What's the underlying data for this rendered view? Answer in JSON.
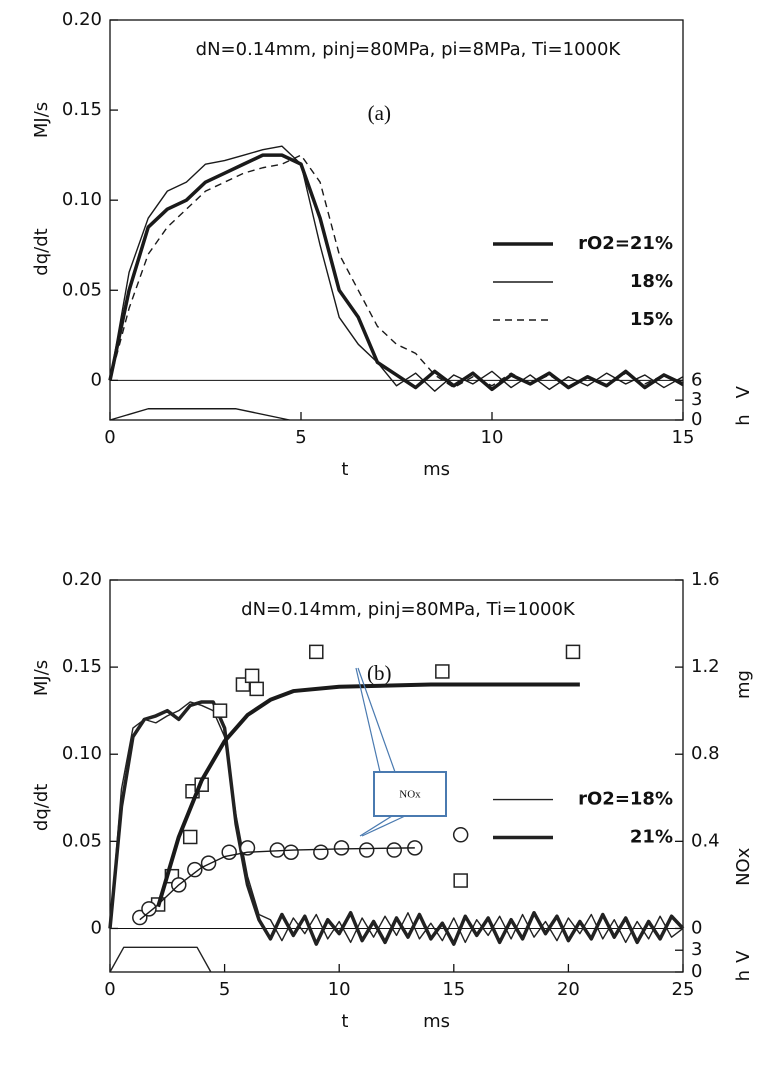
{
  "chart_data": [
    {
      "type": "line",
      "annotation": "dN=0.14mm, pinj=80MPa, pi=8MPa, Ti=1000K",
      "panel_label": "(a)",
      "ylabel": "dq/dt",
      "yunit": "MJ/s",
      "xlabel": "t",
      "xunit": "ms",
      "y2label": "h",
      "y2unit": "V",
      "x": [
        0,
        0.5,
        1,
        1.5,
        2,
        2.5,
        3,
        3.5,
        4,
        4.5,
        5,
        5.5,
        6,
        6.5,
        7,
        7.5,
        8,
        8.5,
        9,
        9.5,
        10,
        10.5,
        11,
        11.5,
        12,
        12.5,
        13,
        13.5,
        14,
        14.5,
        15
      ],
      "xlim": [
        0,
        15
      ],
      "xticks": [
        0,
        5,
        10,
        15
      ],
      "ylim": [
        -0.022,
        0.2
      ],
      "yticks": [
        0,
        0.05,
        {
          "value": 0.1,
          "label": "0.10"
        },
        0.15,
        {
          "value": 0.2,
          "label": "0.20"
        }
      ],
      "y2lim": [
        0,
        60.5
      ],
      "y2ticks": [
        0,
        3,
        6
      ],
      "legend": "right",
      "series": [
        {
          "name": "rO2=21%",
          "color": "#1a1a1a",
          "width": 3.5,
          "values": [
            0,
            0.05,
            0.085,
            0.095,
            0.1,
            0.11,
            0.115,
            0.12,
            0.125,
            0.125,
            0.12,
            0.09,
            0.05,
            0.035,
            0.01,
            0.003,
            -0.004,
            0.005,
            -0.003,
            0.004,
            -0.005,
            0.003,
            -0.002,
            0.004,
            -0.004,
            0.002,
            -0.003,
            0.005,
            -0.004,
            0.003,
            -0.002
          ]
        },
        {
          "name": "18%",
          "color": "#1a1a1a",
          "width": 1.4,
          "values": [
            0,
            0.06,
            0.09,
            0.105,
            0.11,
            0.12,
            0.122,
            0.125,
            0.128,
            0.13,
            0.12,
            0.075,
            0.035,
            0.02,
            0.01,
            -0.003,
            0.004,
            -0.006,
            0.003,
            -0.002,
            0.005,
            -0.004,
            0.003,
            -0.005,
            0.002,
            -0.003,
            0.004,
            -0.002,
            0.003,
            -0.004,
            0.002
          ]
        },
        {
          "name": "15%",
          "color": "#1a1a1a",
          "width": 1.4,
          "dash": true,
          "values": [
            0,
            0.04,
            0.07,
            0.085,
            0.095,
            0.105,
            0.11,
            0.115,
            0.118,
            0.12,
            0.125,
            0.11,
            0.07,
            0.05,
            0.03,
            0.02,
            0.015,
            0.003,
            -0.004,
            0.002,
            -0.003,
            0.004,
            -0.002,
            0.003,
            -0.004,
            0.002,
            -0.003,
            0.004,
            -0.002,
            0.003,
            -0.003
          ]
        },
        {
          "color": "#1a1a1a",
          "width": 1.4,
          "axis": "y2",
          "x": [
            0,
            1,
            3.3,
            4.7
          ],
          "values": [
            0,
            1.7,
            1.7,
            0
          ]
        }
      ]
    },
    {
      "type": "line",
      "annotation": "dN=0.14mm, pinj=80MPa, Ti=1000K",
      "panel_label": "(b)",
      "callout": "NOx",
      "ylabel": "dq/dt",
      "yunit": "MJ/s",
      "xlabel": "t",
      "xunit": "ms",
      "y2label": "NOx",
      "y2unit": "mg",
      "y3label": "h",
      "y3unit": "V",
      "x": [
        0,
        0.5,
        1,
        1.5,
        2,
        2.5,
        3,
        3.5,
        4,
        4.5,
        5,
        5.5,
        6,
        6.5,
        7,
        7.5,
        8,
        8.5,
        9,
        9.5,
        10,
        10.5,
        11,
        11.5,
        12,
        12.5,
        13,
        13.5,
        14,
        14.5,
        15,
        15.5,
        16,
        16.5,
        17,
        17.5,
        18,
        18.5,
        19,
        19.5,
        20,
        20.5,
        21,
        21.5,
        22,
        22.5,
        23,
        23.5,
        24,
        24.5,
        25
      ],
      "xlim": [
        0,
        25
      ],
      "xticks": [
        0,
        5,
        10,
        15,
        20,
        25
      ],
      "ylim": [
        -0.025,
        0.2
      ],
      "yticks": [
        0,
        0.05,
        {
          "value": 0.1,
          "label": "0.10"
        },
        0.15,
        {
          "value": 0.2,
          "label": "0.20"
        }
      ],
      "y2lim": [
        -0.2,
        1.6
      ],
      "y2ticks": [
        0,
        0.4,
        0.8,
        1.2,
        1.6
      ],
      "y3lim": [
        0,
        54
      ],
      "y3ticks": [
        0,
        3
      ],
      "legend": "right",
      "series": [
        {
          "name": "rO2=18%",
          "color": "#222222",
          "width": 1.4,
          "values": [
            0,
            0.08,
            0.115,
            0.12,
            0.118,
            0.122,
            0.125,
            0.13,
            0.128,
            0.125,
            0.11,
            0.065,
            0.03,
            0.008,
            0.005,
            -0.007,
            0.006,
            -0.003,
            0.008,
            -0.006,
            0.004,
            -0.008,
            0.006,
            -0.005,
            0.007,
            -0.004,
            0.009,
            -0.006,
            0.003,
            -0.007,
            0.006,
            -0.008,
            0.005,
            -0.004,
            0.007,
            -0.006,
            0.008,
            -0.005,
            0.004,
            -0.007,
            0.006,
            -0.003,
            0.008,
            -0.006,
            0.005,
            -0.008,
            0.004,
            -0.006,
            0.007,
            -0.005,
            0.0
          ]
        },
        {
          "name": "21%",
          "color": "#222222",
          "width": 3.5,
          "values": [
            0,
            0.07,
            0.11,
            0.12,
            0.122,
            0.125,
            0.12,
            0.128,
            0.13,
            0.13,
            0.115,
            0.06,
            0.025,
            0.005,
            -0.006,
            0.008,
            -0.004,
            0.007,
            -0.009,
            0.005,
            -0.003,
            0.009,
            -0.007,
            0.004,
            -0.008,
            0.006,
            -0.005,
            0.008,
            -0.006,
            0.003,
            -0.009,
            0.007,
            -0.004,
            0.006,
            -0.008,
            0.005,
            -0.006,
            0.009,
            -0.003,
            0.007,
            -0.007,
            0.004,
            -0.006,
            0.008,
            -0.005,
            0.006,
            -0.008,
            0.004,
            -0.006,
            0.007,
            0.0
          ]
        },
        {
          "color": "#222222",
          "width": 1.4,
          "axis": "y3",
          "x": [
            0,
            0.6,
            3.8,
            4.4
          ],
          "values": [
            0,
            3.4,
            3.4,
            0
          ]
        },
        {
          "color": "#222222",
          "marker": "square",
          "axis": "y2",
          "x": [
            2.1,
            2.7,
            3.5,
            3.6,
            4.0,
            4.8,
            5.8,
            6.2,
            6.4,
            9.0,
            14.5,
            15.3,
            20.2
          ],
          "values": [
            0.11,
            0.24,
            0.42,
            0.63,
            0.66,
            1.0,
            1.12,
            1.16,
            1.1,
            1.27,
            1.18,
            0.22,
            1.27
          ]
        },
        {
          "color": "#222222",
          "marker": "circle",
          "axis": "y2",
          "x": [
            1.3,
            1.7,
            3.0,
            3.7,
            4.3,
            5.2,
            6.0,
            7.3,
            7.9,
            9.2,
            10.1,
            11.2,
            12.4,
            13.3,
            15.3
          ],
          "values": [
            0.05,
            0.09,
            0.2,
            0.27,
            0.3,
            0.35,
            0.37,
            0.36,
            0.35,
            0.35,
            0.37,
            0.36,
            0.36,
            0.37,
            0.43
          ]
        },
        {
          "color": "#1a1a1a",
          "width": 4,
          "axis": "y2",
          "x": [
            2.1,
            3,
            4,
            5,
            6,
            7,
            8,
            10,
            14,
            20.5
          ],
          "values": [
            0.1,
            0.42,
            0.68,
            0.86,
            0.98,
            1.05,
            1.09,
            1.11,
            1.12,
            1.12
          ]
        },
        {
          "color": "#1a1a1a",
          "width": 1.4,
          "axis": "y2",
          "x": [
            1.3,
            2,
            3,
            4,
            5,
            6,
            8,
            10,
            13.3
          ],
          "values": [
            0.04,
            0.1,
            0.2,
            0.28,
            0.33,
            0.35,
            0.36,
            0.365,
            0.37
          ]
        }
      ]
    }
  ]
}
